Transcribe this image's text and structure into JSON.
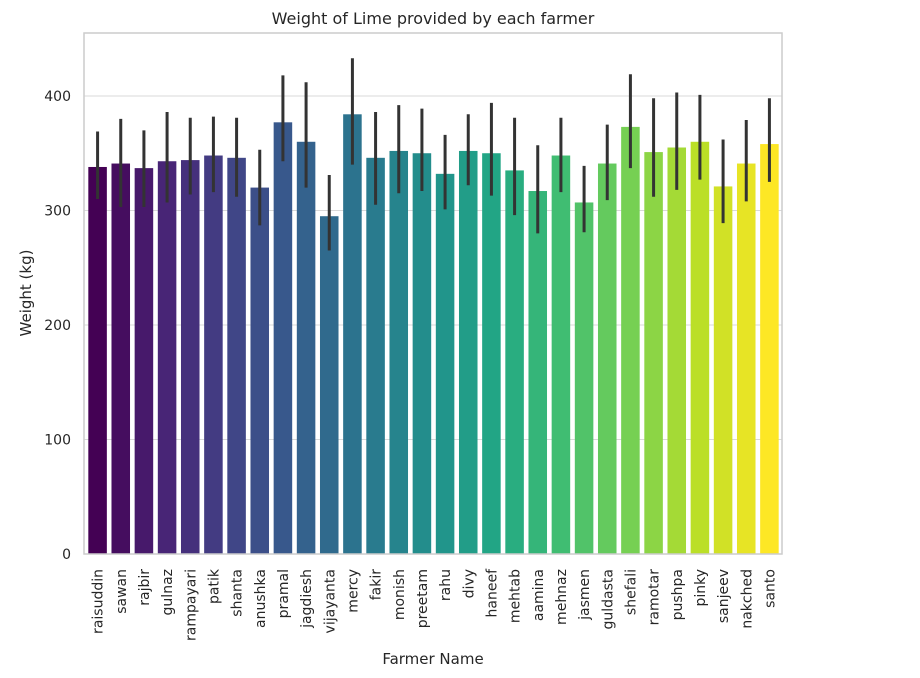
{
  "chart_data": {
    "type": "bar",
    "title": "Weight of Lime provided by each farmer",
    "xlabel": "Farmer Name",
    "ylabel": "Weight (kg)",
    "ylim": [
      0,
      455
    ],
    "yticks": [
      0,
      100,
      200,
      300,
      400
    ],
    "grid": true,
    "palette": "viridis",
    "categories": [
      "raisuddin",
      "sawan",
      "rajbir",
      "gulnaz",
      "rampayari",
      "patik",
      "shanta",
      "anushka",
      "pramal",
      "jagdiesh",
      "vijayanta",
      "mercy",
      "fakir",
      "monish",
      "preetam",
      "rahu",
      "divy",
      "haneef",
      "mehtab",
      "aamina",
      "mehnaz",
      "jasmen",
      "guldasta",
      "shefali",
      "ramotar",
      "pushpa",
      "pinky",
      "sanjeev",
      "nakched",
      "santo"
    ],
    "values": [
      338,
      341,
      337,
      343,
      344,
      348,
      346,
      320,
      377,
      360,
      295,
      384,
      346,
      352,
      350,
      332,
      352,
      350,
      335,
      317,
      348,
      307,
      341,
      373,
      351,
      355,
      360,
      321,
      341,
      358
    ],
    "ci_low": [
      310,
      303,
      303,
      307,
      314,
      316,
      312,
      287,
      343,
      320,
      265,
      340,
      305,
      315,
      317,
      301,
      322,
      313,
      296,
      280,
      316,
      281,
      309,
      337,
      312,
      318,
      327,
      289,
      308,
      325
    ],
    "ci_high": [
      369,
      380,
      370,
      386,
      381,
      382,
      381,
      353,
      418,
      412,
      331,
      433,
      386,
      392,
      389,
      366,
      384,
      394,
      381,
      357,
      381,
      339,
      375,
      419,
      398,
      403,
      401,
      362,
      379,
      398
    ]
  }
}
